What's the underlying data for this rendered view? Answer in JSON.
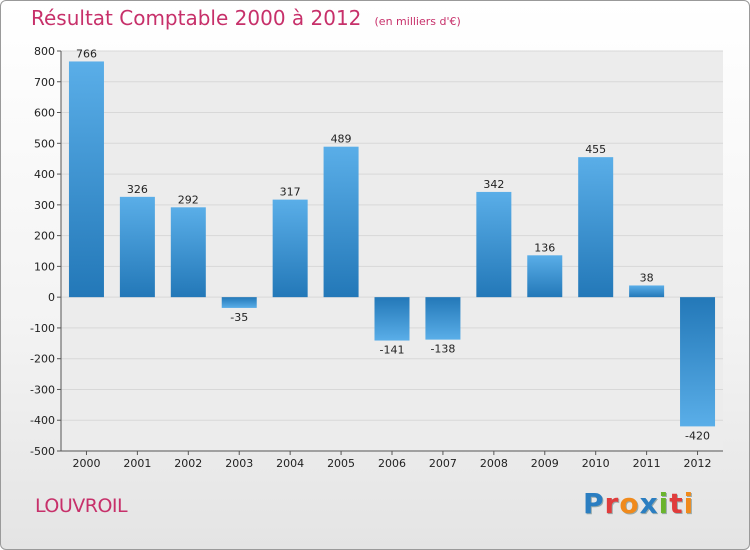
{
  "title": "Résultat Comptable 2000 à 2012",
  "subtitle": "(en milliers d'€)",
  "city": "LOUVROIL",
  "brand": {
    "letters": [
      {
        "char": "P",
        "color": "#2b7ec1"
      },
      {
        "char": "r",
        "color": "#e03c3c"
      },
      {
        "char": "o",
        "color": "#f08a1c"
      },
      {
        "char": "x",
        "color": "#2b7ec1"
      },
      {
        "char": "i",
        "color": "#6ab42d"
      },
      {
        "char": "t",
        "color": "#e03c3c"
      },
      {
        "char": "i",
        "color": "#f08a1c"
      }
    ]
  },
  "colors": {
    "bar_light": "#5aaee8",
    "bar_dark": "#2378b8",
    "title": "#c7306a",
    "axis_text": "#222222",
    "grid": "#d8d8d8"
  },
  "chart_data": {
    "type": "bar",
    "categories": [
      "2000",
      "2001",
      "2002",
      "2003",
      "2004",
      "2005",
      "2006",
      "2007",
      "2008",
      "2009",
      "2010",
      "2011",
      "2012"
    ],
    "values": [
      766,
      326,
      292,
      -35,
      317,
      489,
      -141,
      -138,
      342,
      136,
      455,
      38,
      -420
    ],
    "ylim": [
      -500,
      800
    ],
    "yticks": [
      800,
      700,
      600,
      500,
      400,
      300,
      200,
      100,
      0,
      -100,
      -200,
      -300,
      -400,
      -500
    ],
    "grid": true,
    "legend": "none"
  }
}
